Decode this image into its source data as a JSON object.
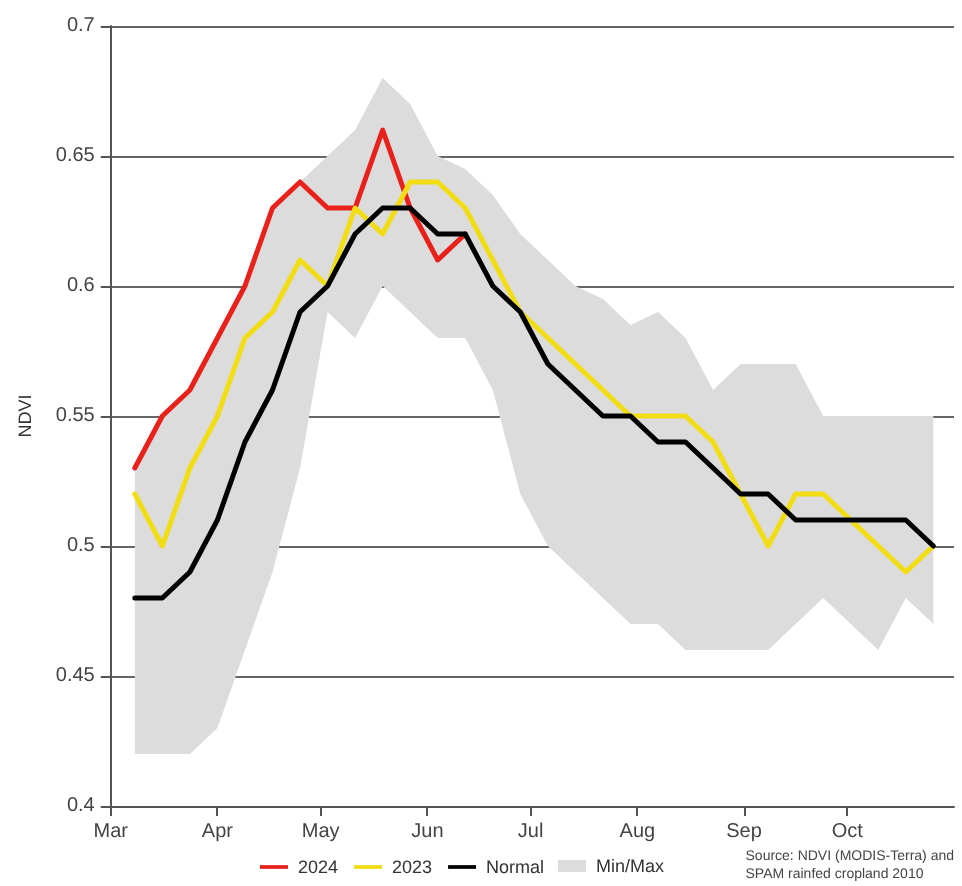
{
  "chart_data": {
    "type": "line",
    "ylabel": "NDVI",
    "x": [
      "--03-08",
      "--03-16",
      "--03-24",
      "--04-01",
      "--04-09",
      "--04-17",
      "--04-25",
      "--05-03",
      "--05-11",
      "--05-19",
      "--05-27",
      "--06-04",
      "--06-12",
      "--06-20",
      "--06-28",
      "--07-06",
      "--07-14",
      "--07-22",
      "--07-30",
      "--08-07",
      "--08-15",
      "--08-23",
      "--08-31",
      "--09-08",
      "--09-16",
      "--09-24",
      "--10-02",
      "--10-10",
      "--10-18",
      "--10-26"
    ],
    "series": [
      {
        "name": "2024",
        "color": "#e8211b",
        "values": [
          0.53,
          0.55,
          0.56,
          0.58,
          0.6,
          0.63,
          0.64,
          0.63,
          0.63,
          0.66,
          0.63,
          0.61,
          0.62,
          null,
          null,
          null,
          null,
          null,
          null,
          null,
          null,
          null,
          null,
          null,
          null,
          null,
          null,
          null,
          null,
          null
        ]
      },
      {
        "name": "2023",
        "color": "#f2dc12",
        "values": [
          0.52,
          0.5,
          0.53,
          0.55,
          0.58,
          0.59,
          0.61,
          0.6,
          0.63,
          0.62,
          0.64,
          0.64,
          0.63,
          0.61,
          0.59,
          0.58,
          0.57,
          0.56,
          0.55,
          0.55,
          0.55,
          0.54,
          0.52,
          0.5,
          0.52,
          0.52,
          0.51,
          0.5,
          0.49,
          0.5
        ]
      },
      {
        "name": "Normal",
        "color": "#000000",
        "values": [
          0.48,
          0.48,
          0.49,
          0.51,
          0.54,
          0.56,
          0.59,
          0.6,
          0.62,
          0.63,
          0.63,
          0.62,
          0.62,
          0.6,
          0.59,
          0.57,
          0.56,
          0.55,
          0.55,
          0.54,
          0.54,
          0.53,
          0.52,
          0.52,
          0.51,
          0.51,
          0.51,
          0.51,
          0.51,
          0.5
        ],
        "lower": [
          0.42,
          0.42,
          0.42,
          0.43,
          0.46,
          0.49,
          0.53,
          0.59,
          0.58,
          0.6,
          0.59,
          0.58,
          0.58,
          0.56,
          0.52,
          0.5,
          0.49,
          0.48,
          0.47,
          0.47,
          0.46,
          0.46,
          0.46,
          0.46,
          0.47,
          0.48,
          0.47,
          0.46,
          0.48,
          0.47
        ],
        "upper": [
          0.53,
          0.55,
          0.56,
          0.58,
          0.6,
          0.63,
          0.64,
          0.65,
          0.66,
          0.68,
          0.67,
          0.65,
          0.645,
          0.635,
          0.62,
          0.61,
          0.6,
          0.595,
          0.585,
          0.59,
          0.58,
          0.56,
          0.57,
          0.57,
          0.57,
          0.55,
          0.55,
          0.55,
          0.55,
          0.55
        ]
      }
    ],
    "xlim": [
      "--03-01",
      "--11-01"
    ],
    "xticks": [
      {
        "value": "--03-01",
        "label": "Mar"
      },
      {
        "value": "--04-01",
        "label": "Apr"
      },
      {
        "value": "--05-01",
        "label": "May"
      },
      {
        "value": "--06-01",
        "label": "Jun"
      },
      {
        "value": "--07-01",
        "label": "Jul"
      },
      {
        "value": "--08-01",
        "label": "Aug"
      },
      {
        "value": "--09-01",
        "label": "Sep"
      },
      {
        "value": "--10-01",
        "label": "Oct"
      }
    ],
    "ylim": [
      0.4,
      0.7
    ],
    "yticks": [
      0.4,
      0.45,
      0.5,
      0.55,
      0.6,
      0.65,
      0.7
    ],
    "grid": "y",
    "legend": "bottom",
    "marker": "none",
    "line_style": "solid",
    "annotations": [
      "Source: NDVI (MODIS-Terra) and\nSPAM rainfed cropland 2010",
      "Min/Max"
    ]
  }
}
